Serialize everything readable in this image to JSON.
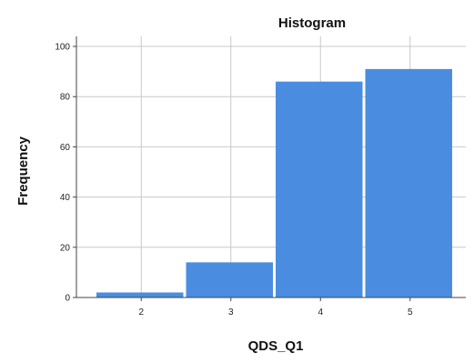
{
  "chart_data": {
    "type": "bar",
    "title": "Histogram",
    "xlabel": "QDS_Q1",
    "ylabel": "Frequency",
    "categories": [
      "2",
      "3",
      "4",
      "5"
    ],
    "values": [
      2,
      14,
      86,
      91
    ],
    "ylim": [
      0,
      104
    ],
    "yticks": [
      0,
      20,
      40,
      60,
      80,
      100
    ],
    "grid": true,
    "bar_color": "#4a8de0"
  }
}
